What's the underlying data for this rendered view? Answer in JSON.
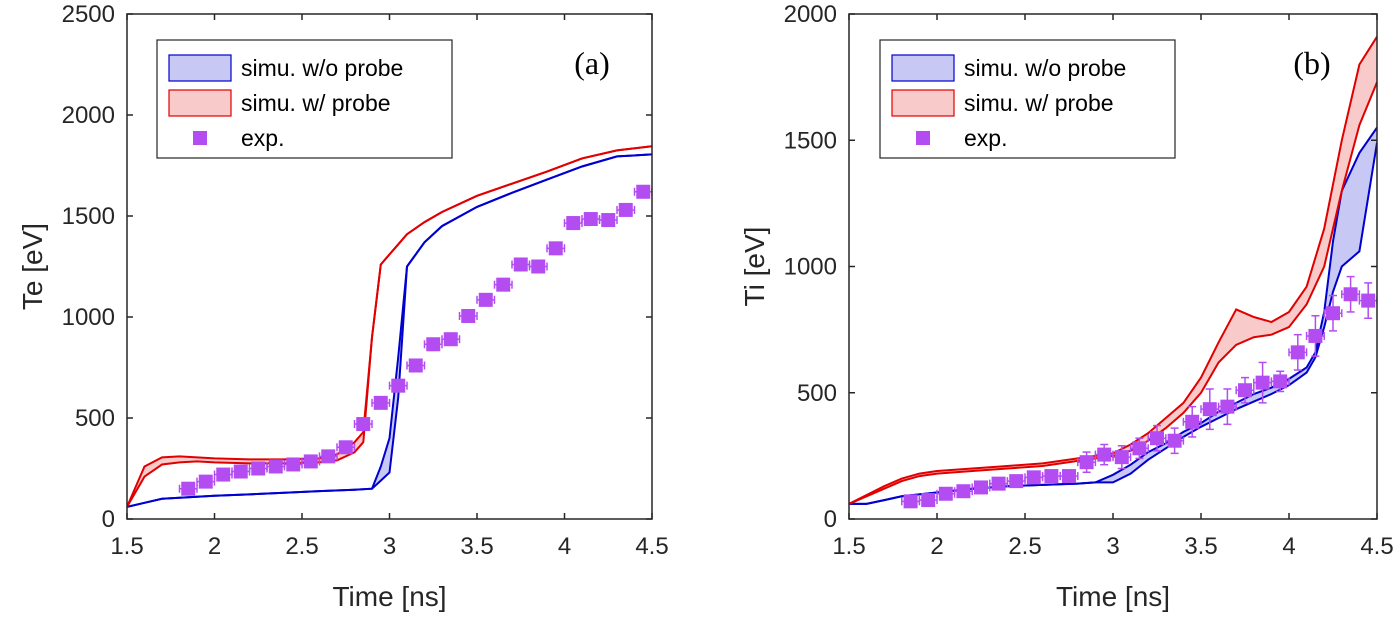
{
  "chart_data": [
    {
      "type": "line",
      "panel_label": "(a)",
      "xlabel": "Time [ns]",
      "ylabel": "Te [eV]",
      "xlim": [
        1.5,
        4.5
      ],
      "ylim": [
        0,
        2500
      ],
      "xticks": [
        "1.5",
        "2",
        "2.5",
        "3",
        "3.5",
        "4",
        "4.5"
      ],
      "yticks": [
        "0",
        "500",
        "1000",
        "1500",
        "2000",
        "2500"
      ],
      "legend_position": "top-left",
      "series": [
        {
          "name": "simu. w/o probe",
          "kind": "band",
          "color": "#0000d0",
          "fill": "#c8c8f4",
          "x": [
            1.5,
            1.6,
            1.7,
            1.8,
            2.0,
            2.2,
            2.4,
            2.6,
            2.8,
            2.9,
            2.95,
            3.0,
            3.05,
            3.1,
            3.2,
            3.3,
            3.5,
            3.7,
            3.9,
            4.1,
            4.3,
            4.5
          ],
          "upper": [
            60,
            80,
            100,
            105,
            115,
            122,
            130,
            138,
            145,
            150,
            260,
            400,
            800,
            1250,
            1370,
            1450,
            1545,
            1615,
            1680,
            1745,
            1795,
            1805
          ],
          "lower": [
            60,
            80,
            100,
            105,
            115,
            122,
            130,
            138,
            145,
            150,
            190,
            230,
            600,
            1250,
            1370,
            1450,
            1545,
            1615,
            1680,
            1745,
            1795,
            1805
          ]
        },
        {
          "name": "simu. w/ probe",
          "kind": "band",
          "color": "#e00000",
          "fill": "#f8caca",
          "x": [
            1.5,
            1.6,
            1.7,
            1.8,
            1.9,
            2.0,
            2.2,
            2.4,
            2.6,
            2.7,
            2.8,
            2.85,
            2.9,
            2.95,
            3.0,
            3.1,
            3.2,
            3.3,
            3.5,
            3.7,
            3.9,
            4.1,
            4.3,
            4.5
          ],
          "upper": [
            60,
            260,
            305,
            310,
            305,
            300,
            295,
            295,
            300,
            320,
            380,
            430,
            900,
            1260,
            1310,
            1410,
            1470,
            1520,
            1600,
            1660,
            1720,
            1785,
            1825,
            1845
          ],
          "lower": [
            60,
            210,
            270,
            280,
            285,
            280,
            275,
            275,
            280,
            290,
            330,
            380,
            900,
            1260,
            1310,
            1410,
            1470,
            1520,
            1600,
            1660,
            1720,
            1785,
            1825,
            1845
          ]
        },
        {
          "name": "exp.",
          "kind": "scatter",
          "color": "#b34df2",
          "x": [
            1.85,
            1.95,
            2.05,
            2.15,
            2.25,
            2.35,
            2.45,
            2.55,
            2.65,
            2.75,
            2.85,
            2.95,
            3.05,
            3.15,
            3.25,
            3.35,
            3.45,
            3.55,
            3.65,
            3.75,
            3.85,
            3.95,
            4.05,
            4.15,
            4.25,
            4.35,
            4.45
          ],
          "y": [
            150,
            185,
            220,
            235,
            250,
            260,
            270,
            285,
            310,
            355,
            470,
            575,
            660,
            760,
            865,
            890,
            1005,
            1085,
            1160,
            1260,
            1250,
            1340,
            1465,
            1485,
            1480,
            1530,
            1620
          ],
          "xerr": 0.05,
          "yerr": [
            20,
            20,
            20,
            20,
            20,
            20,
            20,
            20,
            20,
            25,
            25,
            25,
            30,
            30,
            30,
            30,
            30,
            30,
            30,
            30,
            25,
            30,
            30,
            25,
            25,
            25,
            30
          ]
        }
      ]
    },
    {
      "type": "line",
      "panel_label": "(b)",
      "xlabel": "Time [ns]",
      "ylabel": "Ti [eV]",
      "xlim": [
        1.5,
        4.5
      ],
      "ylim": [
        0,
        2000
      ],
      "xticks": [
        "1.5",
        "2",
        "2.5",
        "3",
        "3.5",
        "4",
        "4.5"
      ],
      "yticks": [
        "0",
        "500",
        "1000",
        "1500",
        "2000"
      ],
      "legend_position": "top-left",
      "series": [
        {
          "name": "simu. w/o probe",
          "kind": "band",
          "color": "#0000d0",
          "fill": "#c8c8f4",
          "x": [
            1.5,
            1.6,
            1.7,
            1.8,
            2.0,
            2.2,
            2.4,
            2.6,
            2.8,
            2.9,
            3.0,
            3.1,
            3.2,
            3.3,
            3.4,
            3.5,
            3.6,
            3.7,
            3.8,
            3.9,
            4.0,
            4.1,
            4.15,
            4.2,
            4.25,
            4.3,
            4.4,
            4.5
          ],
          "upper": [
            60,
            60,
            75,
            90,
            105,
            120,
            130,
            135,
            140,
            145,
            175,
            215,
            265,
            300,
            345,
            380,
            425,
            460,
            495,
            520,
            555,
            600,
            660,
            820,
            1100,
            1300,
            1450,
            1550
          ],
          "lower": [
            60,
            60,
            75,
            90,
            105,
            120,
            130,
            135,
            140,
            145,
            145,
            180,
            235,
            280,
            325,
            365,
            400,
            435,
            465,
            495,
            530,
            580,
            640,
            760,
            900,
            1000,
            1060,
            1490
          ]
        },
        {
          "name": "simu. w/ probe",
          "kind": "band",
          "color": "#e00000",
          "fill": "#f8caca",
          "x": [
            1.5,
            1.6,
            1.7,
            1.8,
            1.9,
            2.0,
            2.2,
            2.4,
            2.6,
            2.8,
            3.0,
            3.1,
            3.2,
            3.3,
            3.4,
            3.5,
            3.6,
            3.7,
            3.8,
            3.9,
            4.0,
            4.1,
            4.2,
            4.3,
            4.4,
            4.5
          ],
          "upper": [
            60,
            95,
            130,
            160,
            180,
            190,
            200,
            210,
            220,
            240,
            260,
            295,
            340,
            400,
            460,
            560,
            700,
            830,
            800,
            780,
            820,
            920,
            1150,
            1500,
            1800,
            1910
          ],
          "lower": [
            60,
            90,
            120,
            150,
            170,
            180,
            190,
            200,
            210,
            230,
            250,
            270,
            310,
            360,
            420,
            500,
            620,
            690,
            720,
            730,
            760,
            850,
            1000,
            1300,
            1560,
            1730
          ]
        },
        {
          "name": "exp.",
          "kind": "scatter",
          "color": "#b34df2",
          "x": [
            1.85,
            1.95,
            2.05,
            2.15,
            2.25,
            2.35,
            2.45,
            2.55,
            2.65,
            2.75,
            2.85,
            2.95,
            3.05,
            3.15,
            3.25,
            3.35,
            3.45,
            3.55,
            3.65,
            3.75,
            3.85,
            3.95,
            4.05,
            4.15,
            4.25,
            4.35,
            4.45
          ],
          "y": [
            70,
            75,
            100,
            110,
            125,
            140,
            150,
            165,
            170,
            170,
            225,
            255,
            245,
            280,
            320,
            310,
            385,
            435,
            445,
            510,
            540,
            545,
            660,
            725,
            815,
            890,
            865
          ],
          "xerr": 0.05,
          "yerr": [
            20,
            20,
            20,
            20,
            20,
            20,
            20,
            20,
            20,
            20,
            40,
            40,
            45,
            40,
            50,
            50,
            60,
            80,
            70,
            50,
            80,
            40,
            70,
            80,
            70,
            70,
            70
          ]
        }
      ]
    }
  ]
}
